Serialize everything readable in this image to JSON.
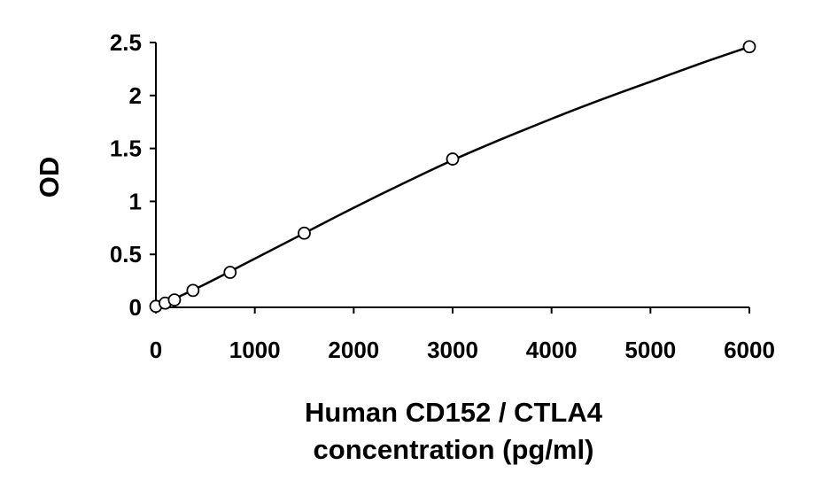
{
  "chart_data": {
    "type": "scatter",
    "title": "",
    "xlabel_lines": [
      "Human CD152 / CTLA4",
      "concentration (pg/ml)"
    ],
    "ylabel": "OD",
    "xlim": [
      0,
      6000
    ],
    "ylim": [
      0,
      2.5
    ],
    "x_ticks": [
      0,
      1000,
      2000,
      3000,
      4000,
      5000,
      6000
    ],
    "x_tick_labels": [
      "0",
      "1000",
      "2000",
      "3000",
      "4000",
      "5000",
      "6000"
    ],
    "y_ticks": [
      0,
      0.5,
      1,
      1.5,
      2,
      2.5
    ],
    "y_tick_labels": [
      "0",
      "0.5",
      "1",
      "1.5",
      "2",
      "2.5"
    ],
    "grid": false,
    "legend": "none",
    "series": [
      {
        "points": [
          {
            "x": 0,
            "y": 0.01
          },
          {
            "x": 93.75,
            "y": 0.04
          },
          {
            "x": 187.5,
            "y": 0.07
          },
          {
            "x": 375,
            "y": 0.16
          },
          {
            "x": 750,
            "y": 0.33
          },
          {
            "x": 1500,
            "y": 0.7
          },
          {
            "x": 3000,
            "y": 1.4
          },
          {
            "x": 6000,
            "y": 2.46
          }
        ]
      }
    ],
    "fit_curve": {
      "type": "smooth",
      "x": [
        0,
        500,
        1000,
        1500,
        2000,
        2500,
        3000,
        3500,
        4000,
        4500,
        5000,
        5500,
        6000
      ],
      "y": [
        0.0,
        0.22,
        0.46,
        0.7,
        0.94,
        1.17,
        1.39,
        1.59,
        1.78,
        1.96,
        2.13,
        2.3,
        2.46
      ]
    },
    "colors": {
      "line": "#000000",
      "marker_fill": "#ffffff",
      "marker_stroke": "#000000"
    }
  }
}
